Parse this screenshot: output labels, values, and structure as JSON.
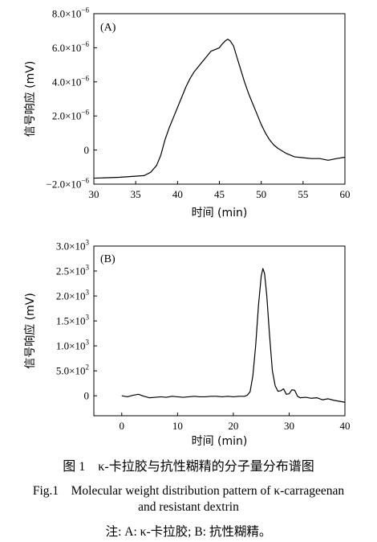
{
  "chart_data": [
    {
      "type": "line",
      "panel_label": "(A)",
      "xlabel": "时间 (min)",
      "ylabel": "信号响应 (mV)",
      "xlim": [
        30,
        60
      ],
      "ylim": [
        -2e-06,
        8e-06
      ],
      "x_ticks": [
        30,
        35,
        40,
        45,
        50,
        55,
        60
      ],
      "y_ticks": [
        -2e-06,
        0,
        2e-06,
        4e-06,
        6e-06,
        8e-06
      ],
      "y_tick_labels": [
        "−2.0×10",
        "0",
        "2.0×10",
        "4.0×10",
        "6.0×10",
        "8.0×10"
      ],
      "y_tick_exponents": [
        "−6",
        "",
        "−6",
        "−6",
        "−6",
        "−6"
      ],
      "grid": false,
      "series": [
        {
          "x": [
            30,
            33,
            36,
            36.8,
            37.5,
            38,
            38.5,
            39,
            39.5,
            40,
            40.5,
            41,
            41.5,
            42,
            42.5,
            43,
            43.5,
            44,
            44.5,
            45,
            45.3,
            45.7,
            46,
            46.3,
            46.7,
            47,
            47.5,
            48,
            48.5,
            49,
            49.5,
            50,
            50.5,
            51,
            51.5,
            52,
            53,
            54,
            55,
            56,
            57,
            58,
            59,
            60
          ],
          "y": [
            -1.65e-06,
            -1.6e-06,
            -1.5e-06,
            -1.3e-06,
            -9e-07,
            -3e-07,
            6e-07,
            1.3e-06,
            1.9e-06,
            2.5e-06,
            3.1e-06,
            3.7e-06,
            4.2e-06,
            4.6e-06,
            4.9e-06,
            5.2e-06,
            5.5e-06,
            5.8e-06,
            5.9e-06,
            6e-06,
            6.2e-06,
            6.4e-06,
            6.5e-06,
            6.4e-06,
            6.1e-06,
            5.6e-06,
            4.8e-06,
            4e-06,
            3.3e-06,
            2.7e-06,
            2.1e-06,
            1.5e-06,
            1e-06,
            6e-07,
            3e-07,
            1e-07,
            -2e-07,
            -4e-07,
            -4.5e-07,
            -5e-07,
            -5e-07,
            -6e-07,
            -5e-07,
            -4.2e-07
          ]
        }
      ]
    },
    {
      "type": "line",
      "panel_label": "(B)",
      "xlabel": "时间 (min)",
      "ylabel": "信号响应 (mV)",
      "xlim": [
        -5,
        40
      ],
      "ylim": [
        -400,
        3000
      ],
      "x_ticks": [
        0,
        10,
        20,
        30,
        40
      ],
      "y_ticks": [
        0,
        500,
        1000,
        1500,
        2000,
        2500,
        3000
      ],
      "y_tick_labels": [
        "0",
        "5.0×10",
        "1.0×10",
        "1.5×10",
        "2.0×10",
        "2.5×10",
        "3.0×10"
      ],
      "y_tick_exponents": [
        "",
        "2",
        "3",
        "3",
        "3",
        "3",
        "3"
      ],
      "grid": false,
      "series": [
        {
          "x": [
            0,
            1,
            2,
            3,
            4,
            5,
            6,
            7,
            8,
            9,
            10,
            11,
            12,
            13,
            14,
            15,
            16,
            17,
            18,
            19,
            20,
            21,
            22,
            22.5,
            23,
            23.5,
            24,
            24.5,
            25,
            25.3,
            25.6,
            26,
            26.5,
            27,
            27.5,
            28,
            28.5,
            29,
            29.5,
            30,
            30.5,
            31,
            31.5,
            32,
            33,
            34,
            35,
            36,
            37,
            38,
            39,
            40
          ],
          "y": [
            0,
            -20,
            10,
            30,
            -10,
            -40,
            -30,
            -20,
            -30,
            -10,
            -20,
            -30,
            -20,
            -10,
            -20,
            -20,
            -10,
            -10,
            -20,
            -10,
            -20,
            -10,
            -10,
            10,
            80,
            400,
            1000,
            1800,
            2400,
            2550,
            2450,
            2000,
            1200,
            500,
            200,
            90,
            100,
            140,
            30,
            40,
            120,
            110,
            -10,
            -40,
            -30,
            -50,
            -40,
            -80,
            -60,
            -90,
            -110,
            -130
          ]
        }
      ]
    }
  ],
  "captions": {
    "cn": "图 1　κ-卡拉胶与抗性糊精的分子量分布谱图",
    "en_line1": "Fig.1　Molecular weight distribution pattern of κ-carrageenan",
    "en_line2": "and resistant dextrin",
    "note": "注: A: κ-卡拉胶; B: 抗性糊精。"
  }
}
